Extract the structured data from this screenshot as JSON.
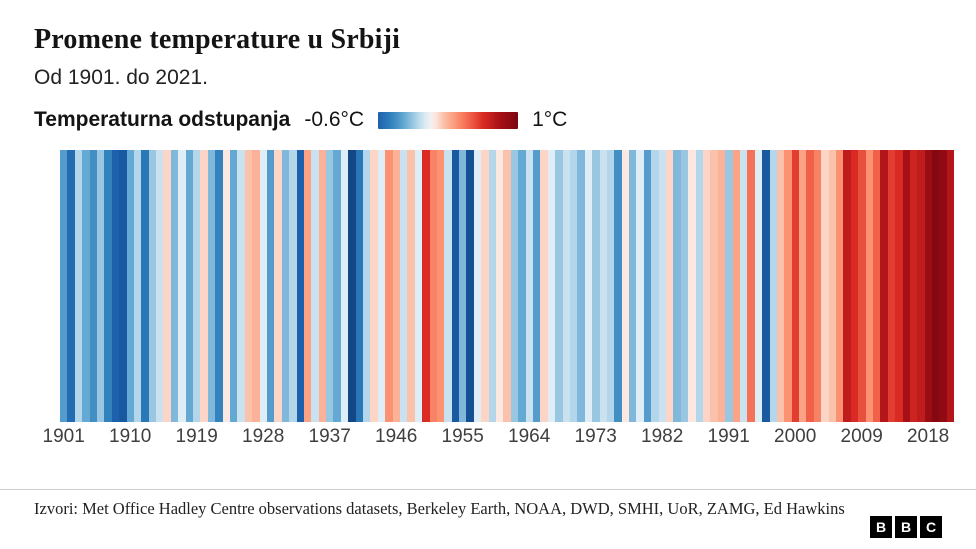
{
  "header": {
    "title": "Promene temperature u Srbiji",
    "subtitle": "Od 1901. do 2021."
  },
  "legend": {
    "label": "Temperaturna odstupanja",
    "min_label": "-0.6°C",
    "max_label": "1°C"
  },
  "chart_data": {
    "type": "heatmap",
    "subtype": "warming-stripes",
    "title": "Promene temperature u Srbiji",
    "subtitle": "Od 1901. do 2021.",
    "start_year": 1901,
    "end_year": 2021,
    "unit": "°C",
    "values": [
      -0.35,
      -0.55,
      -0.15,
      -0.3,
      -0.4,
      -0.2,
      -0.45,
      -0.6,
      -0.65,
      -0.3,
      -0.15,
      -0.5,
      -0.2,
      -0.1,
      0.1,
      -0.25,
      -0.05,
      -0.3,
      -0.15,
      0.1,
      -0.25,
      -0.45,
      0.05,
      -0.3,
      -0.1,
      0.15,
      0.2,
      -0.05,
      -0.35,
      0.1,
      -0.25,
      -0.15,
      -0.6,
      0.25,
      -0.1,
      0.2,
      -0.2,
      -0.3,
      -0.05,
      -0.75,
      -0.5,
      -0.15,
      0.1,
      -0.05,
      0.3,
      0.2,
      -0.1,
      0.15,
      -0.05,
      0.6,
      0.35,
      0.3,
      -0.1,
      -0.65,
      -0.25,
      -0.7,
      -0.05,
      0.1,
      -0.15,
      0.05,
      0.15,
      -0.2,
      -0.3,
      -0.1,
      -0.35,
      0.1,
      -0.05,
      -0.2,
      -0.1,
      -0.15,
      -0.25,
      -0.05,
      -0.2,
      -0.1,
      -0.15,
      -0.4,
      0.05,
      -0.25,
      -0.05,
      -0.35,
      -0.15,
      -0.1,
      0.1,
      -0.25,
      -0.2,
      0.05,
      -0.15,
      0.1,
      0.15,
      0.2,
      -0.2,
      0.25,
      -0.1,
      0.4,
      -0.05,
      -0.65,
      -0.15,
      0.15,
      0.3,
      0.55,
      0.25,
      0.45,
      0.35,
      0.1,
      0.15,
      0.3,
      0.7,
      0.6,
      0.5,
      0.3,
      0.45,
      0.75,
      0.55,
      0.6,
      0.8,
      0.65,
      0.7,
      0.85,
      0.95,
      0.9,
      0.75
    ],
    "x_ticks": [
      1901,
      1910,
      1919,
      1928,
      1937,
      1946,
      1955,
      1964,
      1973,
      1982,
      1991,
      2000,
      2009,
      2018
    ],
    "scale": {
      "min": -0.6,
      "max": 1.0,
      "stops": [
        [
          -0.8,
          "#0d3f78"
        ],
        [
          -0.6,
          "#1d61ad"
        ],
        [
          -0.45,
          "#3182bd"
        ],
        [
          -0.3,
          "#64a9d3"
        ],
        [
          -0.15,
          "#b4d6ea"
        ],
        [
          -0.03,
          "#e8f1f8"
        ],
        [
          0.03,
          "#fdf0ec"
        ],
        [
          0.15,
          "#fbc2ab"
        ],
        [
          0.3,
          "#fc9272"
        ],
        [
          0.45,
          "#f1614a"
        ],
        [
          0.6,
          "#d92b24"
        ],
        [
          0.8,
          "#a50f15"
        ],
        [
          1.0,
          "#7a0510"
        ]
      ]
    },
    "legend_range_labels": [
      "-0.6°C",
      "1°C"
    ],
    "grid": false,
    "legend_position": "top-left"
  },
  "footer": {
    "source": "Izvori: Met Office Hadley Centre observations datasets, Berkeley Earth, NOAA, DWD, SMHI, UoR, ZAMG, Ed Hawkins",
    "logo_letters": [
      "B",
      "B",
      "C"
    ]
  }
}
